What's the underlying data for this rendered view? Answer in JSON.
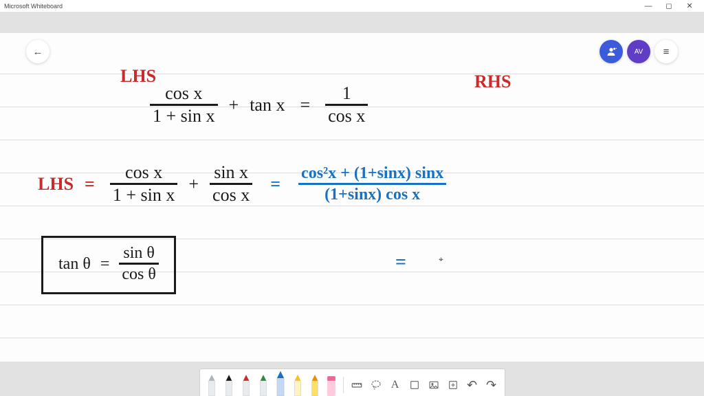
{
  "window": {
    "title": "Microsoft Whiteboard",
    "minimize": "—",
    "maximize": "◻",
    "close": "✕"
  },
  "topbuttons": {
    "back_glyph": "←",
    "share_glyph": "👤",
    "avatar_text": "AV",
    "menu_glyph": "≡"
  },
  "colors": {
    "ink_black": "#1a1a1a",
    "ink_red": "#c92a2a",
    "ink_blue": "#1971c2",
    "share_bg": "#3b5bdb",
    "avatar_bg": "#5f3dc4",
    "ruled_line": "#dcdde0",
    "canvas_bg": "#fdfdfd",
    "chrome_bg": "#e2e2e2"
  },
  "handwriting": {
    "lhs_label": "LHS",
    "rhs_label": "RHS",
    "line1": {
      "frac1_num": "cos x",
      "frac1_den": "1 + sin x",
      "plus": "+",
      "tan": "tan x",
      "eq": "=",
      "frac2_num": "1",
      "frac2_den": "cos x"
    },
    "line2": {
      "lhs_eq": "LHS",
      "eq1": "=",
      "fracA_num": "cos x",
      "fracA_den": "1 + sin x",
      "plus": "+",
      "fracB_num": "sin x",
      "fracB_den": "cos x",
      "eq2": "=",
      "fracC_num": "cos²x + (1+sinx) sinx",
      "fracC_den": "(1+sinx) cos x"
    },
    "boxed": {
      "lhs": "tan θ",
      "eq": "=",
      "num": "sin θ",
      "den": "cos θ"
    },
    "trailing_eq": "="
  },
  "toolbar": {
    "pens": [
      {
        "body": "#e9ecef",
        "tip": "#adb5bd"
      },
      {
        "body": "#e9ecef",
        "tip": "#1a1a1a"
      },
      {
        "body": "#e9ecef",
        "tip": "#c92a2a"
      },
      {
        "body": "#e9ecef",
        "tip": "#2b8a3e"
      },
      {
        "body": "#c5d8f5",
        "tip": "#1971c2",
        "selected": true
      },
      {
        "body": "#fff3bf",
        "tip": "#fcc419"
      },
      {
        "body": "#ffe066",
        "tip": "#f08c00"
      }
    ],
    "eraser_body": "#ffc9de",
    "eraser_tip": "#f06595",
    "icons": {
      "ruler": "📐",
      "lasso": "A",
      "text": "A",
      "note": "□",
      "image": "🖼",
      "add": "⊞",
      "undo": "↶",
      "redo": "↷"
    }
  }
}
